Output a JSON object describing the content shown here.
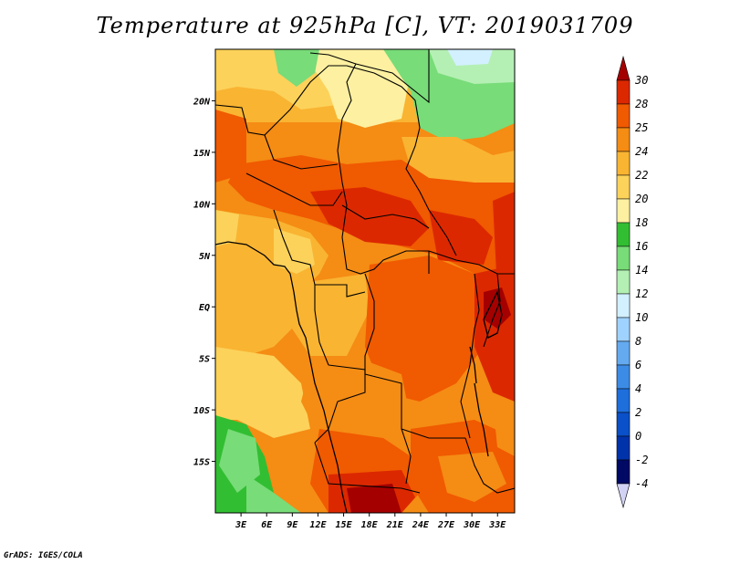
{
  "title": "Temperature at 925hPa [C], VT: 2019031709",
  "credit": "GrADS: IGES/COLA",
  "map": {
    "region": "Central Africa",
    "lon_range": [
      0,
      35
    ],
    "lat_range": [
      -20,
      25
    ],
    "lat_labels": [
      "20N",
      "15N",
      "10N",
      "5N",
      "EQ",
      "5S",
      "10S",
      "15S"
    ],
    "lat_values": [
      20,
      15,
      10,
      5,
      0,
      -5,
      -10,
      -15
    ],
    "lon_labels": [
      "3E",
      "6E",
      "9E",
      "12E",
      "15E",
      "18E",
      "21E",
      "24E",
      "27E",
      "30E",
      "33E"
    ],
    "lon_values": [
      3,
      6,
      9,
      12,
      15,
      18,
      21,
      24,
      27,
      30,
      33
    ]
  },
  "colorbar": {
    "labels": [
      "30",
      "28",
      "25",
      "24",
      "22",
      "20",
      "18",
      "16",
      "14",
      "12",
      "10",
      "8",
      "6",
      "4",
      "2",
      "0",
      "-2",
      "-4"
    ],
    "colors": [
      "#a50000",
      "#dc2800",
      "#f05a00",
      "#f58c14",
      "#f9b432",
      "#fcd25a",
      "#fdf0a0",
      "#32be32",
      "#78dc78",
      "#b4f0b4",
      "#d2f0ff",
      "#a0d2ff",
      "#64aaf0",
      "#3c8ce6",
      "#1e6edc",
      "#0a50c8",
      "#0032aa",
      "#000a64",
      "#d2d2f5"
    ]
  }
}
